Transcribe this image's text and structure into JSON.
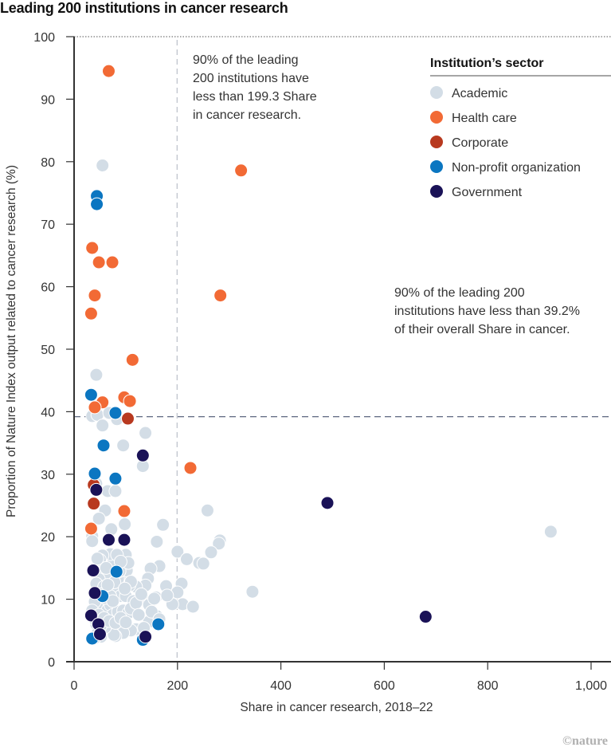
{
  "chart_data": {
    "type": "scatter",
    "title": "Leading 200 institutions in cancer research",
    "xlabel": "Share in cancer research, 2018–22",
    "ylabel": "Proportion of Nature Index output related to cancer research (%)",
    "xlim": [
      0,
      1000
    ],
    "ylim": [
      0,
      100
    ],
    "x_ticks": [
      0,
      200,
      400,
      600,
      800,
      1000
    ],
    "x_tick_labels": [
      "0",
      "200",
      "400",
      "600",
      "800",
      "1,000"
    ],
    "y_ticks": [
      0,
      10,
      20,
      30,
      40,
      50,
      60,
      70,
      80,
      90,
      100
    ],
    "y_tick_labels": [
      "0",
      "10",
      "20",
      "30",
      "40",
      "50",
      "60",
      "70",
      "80",
      "90",
      "100"
    ],
    "grid": false,
    "reference_lines": [
      {
        "axis": "x",
        "value": 199.3,
        "style": "dashed",
        "label": "90% of the leading 200 institutions have less than 199.3 Share in cancer research."
      },
      {
        "axis": "y",
        "value": 39.2,
        "style": "dashed",
        "label": "90% of the leading 200 institutions have less than 39.2% of their overall Share in cancer."
      }
    ],
    "annotations": [
      {
        "lines": [
          "90% of the leading",
          "200 institutions have",
          "less than 199.3 Share",
          "in cancer research."
        ]
      },
      {
        "lines": [
          "90% of the leading 200",
          "institutions have less than 39.2%",
          "of their overall Share in cancer."
        ]
      }
    ],
    "legend": {
      "title": "Institution’s sector",
      "position": "top-right",
      "entries": [
        {
          "name": "Academic",
          "color": "#d3dde6"
        },
        {
          "name": "Health care",
          "color": "#f26a35"
        },
        {
          "name": "Corporate",
          "color": "#b8391f"
        },
        {
          "name": "Non-profit organization",
          "color": "#0b76c1"
        },
        {
          "name": "Government",
          "color": "#1a1257"
        }
      ]
    },
    "series": [
      {
        "name": "Academic",
        "points": [
          [
            55,
            79.4
          ],
          [
            43,
            45.9
          ],
          [
            35,
            39.3
          ],
          [
            45,
            39.5
          ],
          [
            55,
            37.8
          ],
          [
            83,
            38.8
          ],
          [
            68,
            39.8
          ],
          [
            95,
            34.6
          ],
          [
            138,
            36.6
          ],
          [
            133,
            31.3
          ],
          [
            65,
            27.3
          ],
          [
            80,
            27.3
          ],
          [
            43,
            28.5
          ],
          [
            60,
            24.2
          ],
          [
            48,
            22.9
          ],
          [
            98,
            22
          ],
          [
            172,
            21.9
          ],
          [
            258,
            24.2
          ],
          [
            922,
            20.8
          ],
          [
            35,
            20.1
          ],
          [
            35,
            19.3
          ],
          [
            72,
            21.2
          ],
          [
            100,
            17.1
          ],
          [
            160,
            19.2
          ],
          [
            200,
            17.6
          ],
          [
            218,
            16.4
          ],
          [
            282,
            19.4
          ],
          [
            280,
            18.9
          ],
          [
            265,
            17.5
          ],
          [
            242,
            15.8
          ],
          [
            250,
            15.7
          ],
          [
            165,
            15.3
          ],
          [
            148,
            14.9
          ],
          [
            143,
            13.3
          ],
          [
            138,
            12.2
          ],
          [
            120,
            12
          ],
          [
            107,
            12.2
          ],
          [
            95,
            13.5
          ],
          [
            102,
            14.6
          ],
          [
            85,
            13.3
          ],
          [
            75,
            15.7
          ],
          [
            70,
            17.2
          ],
          [
            55,
            17
          ],
          [
            50,
            16.3
          ],
          [
            45,
            16.5
          ],
          [
            60,
            13.9
          ],
          [
            48,
            13.2
          ],
          [
            43,
            12.5
          ],
          [
            58,
            12
          ],
          [
            68,
            11
          ],
          [
            80,
            11
          ],
          [
            90,
            10.5
          ],
          [
            100,
            10.5
          ],
          [
            115,
            9.7
          ],
          [
            130,
            9.9
          ],
          [
            135,
            9.9
          ],
          [
            145,
            9.1
          ],
          [
            158,
            10.3
          ],
          [
            178,
            12.1
          ],
          [
            208,
            12.5
          ],
          [
            200,
            11.1
          ],
          [
            210,
            9.2
          ],
          [
            190,
            9.2
          ],
          [
            230,
            8.8
          ],
          [
            345,
            11.2
          ],
          [
            180,
            10.6
          ],
          [
            160,
            7.3
          ],
          [
            145,
            6.4
          ],
          [
            120,
            5.2
          ],
          [
            110,
            5
          ],
          [
            95,
            4.6
          ],
          [
            80,
            4.1
          ],
          [
            77,
            4.3
          ],
          [
            60,
            5.5
          ],
          [
            52,
            5.8
          ],
          [
            43,
            6
          ],
          [
            40,
            6.8
          ],
          [
            38,
            7.9
          ],
          [
            45,
            8.5
          ],
          [
            55,
            9.3
          ],
          [
            65,
            8.3
          ],
          [
            70,
            9.1
          ],
          [
            75,
            7.5
          ],
          [
            85,
            8
          ],
          [
            95,
            8.2
          ],
          [
            105,
            7.8
          ],
          [
            50,
            10.8
          ],
          [
            60,
            10.2
          ],
          [
            70,
            10.5
          ],
          [
            40,
            9.6
          ],
          [
            35,
            8.2
          ],
          [
            48,
            7.5
          ],
          [
            58,
            7
          ],
          [
            68,
            6.5
          ],
          [
            80,
            6.2
          ],
          [
            90,
            7
          ],
          [
            45,
            4.5
          ],
          [
            52,
            4
          ],
          [
            40,
            3.8
          ],
          [
            110,
            8.5
          ],
          [
            120,
            9.4
          ],
          [
            125,
            7.5
          ],
          [
            150,
            8
          ],
          [
            155,
            10.1
          ],
          [
            165,
            6.8
          ],
          [
            62,
            15
          ],
          [
            78,
            12.7
          ],
          [
            88,
            14.5
          ],
          [
            105,
            15.8
          ],
          [
            130,
            10.8
          ],
          [
            135,
            5.4
          ],
          [
            100,
            6.3
          ],
          [
            75,
            9.7
          ],
          [
            65,
            12.3
          ],
          [
            83,
            17.1
          ],
          [
            90,
            16
          ],
          [
            110,
            12.8
          ],
          [
            98,
            11.7
          ]
        ]
      },
      {
        "name": "Health care",
        "points": [
          [
            67,
            94.5
          ],
          [
            35,
            66.2
          ],
          [
            48,
            63.9
          ],
          [
            74,
            63.9
          ],
          [
            40,
            58.6
          ],
          [
            283,
            58.6
          ],
          [
            33,
            55.7
          ],
          [
            113,
            48.3
          ],
          [
            55,
            41.5
          ],
          [
            97,
            42.3
          ],
          [
            108,
            41.7
          ],
          [
            40,
            40.7
          ],
          [
            97,
            24.1
          ],
          [
            33,
            21.3
          ],
          [
            225,
            31
          ],
          [
            323,
            78.6
          ]
        ]
      },
      {
        "name": "Corporate",
        "points": [
          [
            104,
            38.9
          ],
          [
            38,
            28.3
          ],
          [
            38,
            25.3
          ]
        ]
      },
      {
        "name": "Non-profit organization",
        "points": [
          [
            44,
            74.5
          ],
          [
            44,
            73.2
          ],
          [
            33,
            42.7
          ],
          [
            80,
            39.8
          ],
          [
            57,
            34.6
          ],
          [
            40,
            30.1
          ],
          [
            80,
            29.3
          ],
          [
            82,
            14.4
          ],
          [
            55,
            10.5
          ],
          [
            35,
            3.7
          ],
          [
            133,
            3.5
          ],
          [
            163,
            6
          ]
        ]
      },
      {
        "name": "Government",
        "points": [
          [
            133,
            33
          ],
          [
            43,
            27.5
          ],
          [
            67,
            19.5
          ],
          [
            97,
            19.5
          ],
          [
            37,
            14.6
          ],
          [
            40,
            11
          ],
          [
            33,
            7.4
          ],
          [
            47,
            6
          ],
          [
            50,
            4.4
          ],
          [
            138,
            4
          ],
          [
            490,
            25.4
          ],
          [
            680,
            7.2
          ]
        ]
      }
    ]
  },
  "credit": "©nature"
}
